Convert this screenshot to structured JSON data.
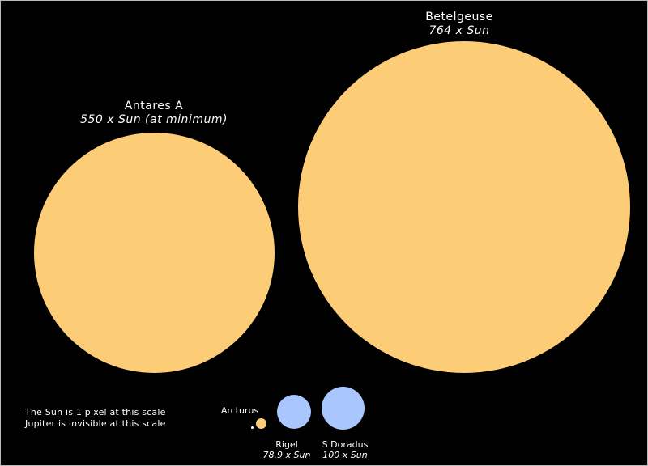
{
  "stars": {
    "betelgeuse": {
      "name": "Betelgeuse",
      "size": "764 x Sun"
    },
    "antares": {
      "name": "Antares A",
      "size": "550 x Sun (at minimum)"
    },
    "arcturus": {
      "name": "Arcturus"
    },
    "rigel": {
      "name": "Rigel",
      "size": "78.9 x Sun"
    },
    "s_doradus": {
      "name": "S Doradus",
      "size": "100 x Sun"
    }
  },
  "notes": {
    "line1": "The Sun is 1 pixel at this scale",
    "line2": "Jupiter is invisible at this scale"
  },
  "colors": {
    "background": "#000000",
    "red_supergiant": "#FDCC77",
    "blue_star": "#A9C6FF",
    "text": "#FFFFFF"
  }
}
